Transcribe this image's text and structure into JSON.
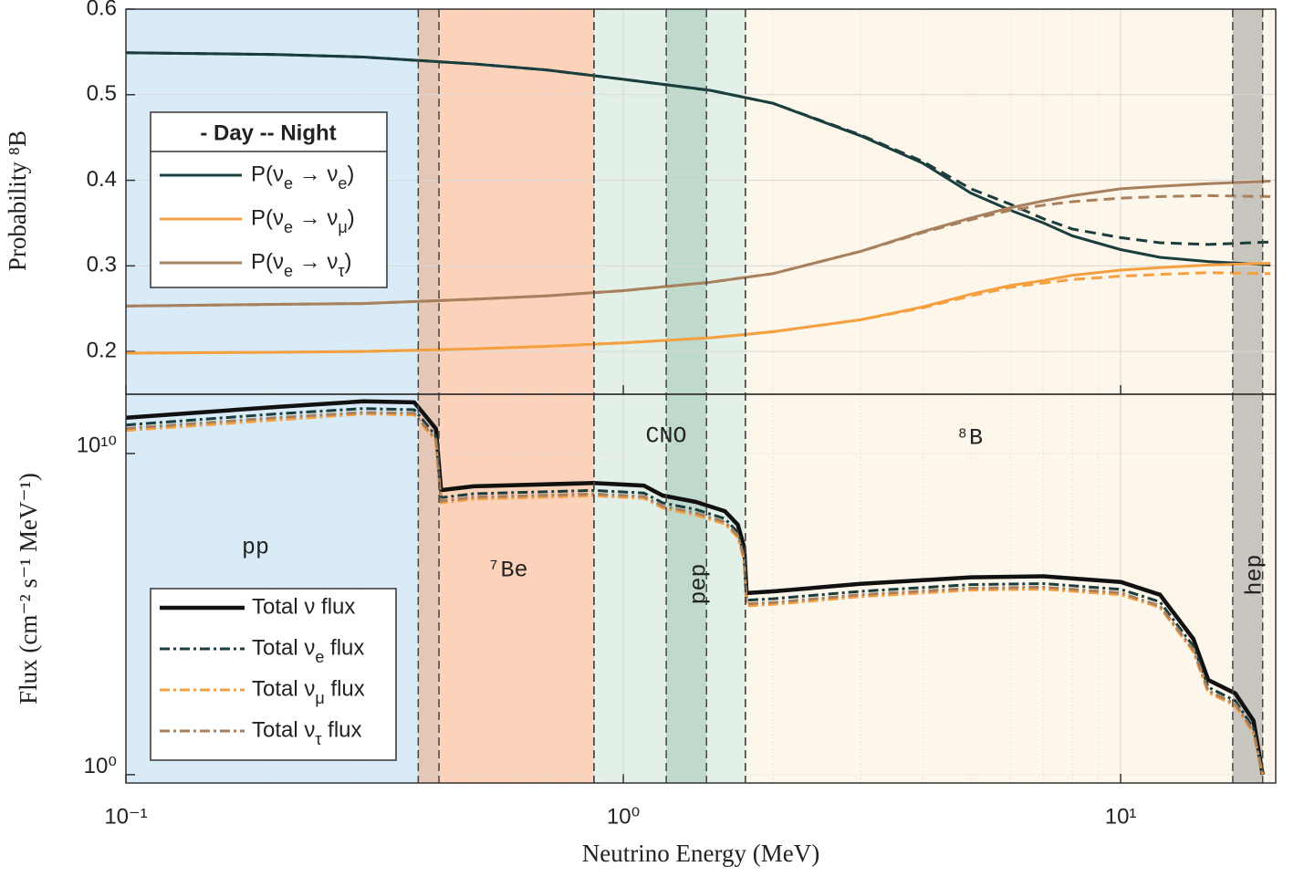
{
  "chart_data": [
    {
      "type": "line",
      "ylabel": "Probability ⁸B",
      "legend_title": "- Day -- Night",
      "ylim": [
        0.15,
        0.6
      ],
      "yticks": [
        0.2,
        0.3,
        0.4,
        0.5,
        0.6
      ],
      "grid": true,
      "x": [
        0.1,
        0.2,
        0.3,
        0.5,
        0.7,
        1,
        1.5,
        2,
        3,
        4,
        5,
        6,
        7,
        8,
        10,
        12,
        15,
        20
      ],
      "series": [
        {
          "name": "P(νe → νe)",
          "color": "#1a3d3d",
          "values": [
            0.549,
            0.547,
            0.544,
            0.536,
            0.529,
            0.518,
            0.505,
            0.49,
            0.452,
            0.42,
            0.385,
            0.365,
            0.35,
            0.335,
            0.319,
            0.31,
            0.305,
            0.301
          ],
          "night_values": [
            0.549,
            0.547,
            0.544,
            0.536,
            0.529,
            0.518,
            0.505,
            0.49,
            0.453,
            0.422,
            0.39,
            0.372,
            0.355,
            0.343,
            0.333,
            0.327,
            0.325,
            0.328
          ]
        },
        {
          "name": "P(νe → νμ)",
          "color": "#f5a040",
          "values": [
            0.198,
            0.199,
            0.2,
            0.203,
            0.206,
            0.21,
            0.216,
            0.223,
            0.237,
            0.252,
            0.267,
            0.277,
            0.283,
            0.289,
            0.295,
            0.298,
            0.301,
            0.303
          ],
          "night_values": [
            0.198,
            0.199,
            0.2,
            0.203,
            0.206,
            0.21,
            0.216,
            0.223,
            0.237,
            0.251,
            0.265,
            0.275,
            0.28,
            0.284,
            0.288,
            0.29,
            0.292,
            0.291
          ]
        },
        {
          "name": "P(νe → ντ)",
          "color": "#a8805e",
          "values": [
            0.253,
            0.255,
            0.256,
            0.261,
            0.265,
            0.271,
            0.281,
            0.291,
            0.317,
            0.34,
            0.356,
            0.368,
            0.376,
            0.382,
            0.39,
            0.393,
            0.396,
            0.399
          ],
          "night_values": [
            0.253,
            0.255,
            0.256,
            0.261,
            0.265,
            0.271,
            0.281,
            0.291,
            0.317,
            0.339,
            0.354,
            0.365,
            0.371,
            0.375,
            0.379,
            0.381,
            0.382,
            0.381
          ]
        }
      ]
    },
    {
      "type": "line",
      "yscale": "log",
      "xlabel": "Neutrino Energy (MeV)",
      "ylabel": "Flux (cm⁻² s⁻¹ MeV⁻¹)",
      "xlim": [
        0.1,
        20.5
      ],
      "xticks": [
        {
          "value": 0.1,
          "label": "10⁻¹"
        },
        {
          "value": 1,
          "label": "10⁰"
        },
        {
          "value": 10,
          "label": "10¹"
        }
      ],
      "ylim": [
        0.55,
        700000000000.0
      ],
      "yticks": [
        {
          "value": 1,
          "label": "10⁰"
        },
        {
          "value": 10000000000.0,
          "label": "10¹⁰"
        }
      ],
      "grid": true,
      "regions": [
        {
          "name": "pp",
          "range": [
            0.1,
            0.426
          ],
          "color": "rgba(140,195,228,0.33)"
        },
        {
          "name": "⁷Be",
          "range": [
            0.387,
            0.873
          ],
          "color": "rgba(248,150,90,0.42)"
        },
        {
          "name": "CNO",
          "range": [
            0.873,
            1.76
          ],
          "color": "rgba(160,205,180,0.3)"
        },
        {
          "name": "pep",
          "range": [
            1.22,
            1.47
          ],
          "color": "rgba(110,170,140,0.3)"
        },
        {
          "name": "⁸B",
          "range": [
            1.76,
            20.5
          ],
          "color": "rgba(250,225,190,0.3)"
        },
        {
          "name": "hep",
          "range": [
            16.8,
            19.3
          ],
          "color": "rgba(150,150,150,0.5)"
        }
      ],
      "x": [
        0.1,
        0.2,
        0.3,
        0.38,
        0.4,
        0.42,
        0.43,
        0.5,
        0.87,
        1.1,
        1.2,
        1.4,
        1.6,
        1.7,
        1.75,
        1.77,
        2,
        3,
        5,
        7,
        10,
        12,
        14,
        15,
        17,
        18.5,
        19.3
      ],
      "series": [
        {
          "name": "Total ν flux",
          "color": "#111111",
          "style": "solid",
          "values": [
            130000000000.0,
            280000000000.0,
            420000000000.0,
            390000000000.0,
            150000000000.0,
            59000000000.0,
            720000000.0,
            950000000.0,
            1200000000.0,
            1000000000.0,
            490000000.0,
            310000000.0,
            160000000.0,
            60000000.0,
            12000000.0,
            450000.0,
            510000.0,
            870000.0,
            1400000.0,
            1500000.0,
            1000000.0,
            400000.0,
            17000.0,
            890,
            340,
            48,
            1
          ]
        },
        {
          "name": "Total νe flux",
          "color": "#1a3d3d",
          "style": "dash-dot",
          "values": [
            77000000000.0,
            170000000000.0,
            250000000000.0,
            230000000000.0,
            89000000000.0,
            35000000000.0,
            420000000.0,
            560000000.0,
            710000000.0,
            590000000.0,
            290000000.0,
            180000000.0,
            94000000.0,
            35000000.0,
            7100000.0,
            270000.0,
            300000.0,
            510000.0,
            830000.0,
            890000.0,
            590000.0,
            240000.0,
            10000.0,
            530,
            200,
            28,
            1
          ]
        },
        {
          "name": "Total νμ flux",
          "color": "#f5a040",
          "style": "dash-dot",
          "values": [
            52000000000.0,
            110000000000.0,
            170000000000.0,
            160000000000.0,
            60000000000.0,
            24000000000.0,
            290000000.0,
            380000000.0,
            480000000.0,
            400000000.0,
            200000000.0,
            120000000.0,
            64000000.0,
            24000000.0,
            4800000.0,
            180000.0,
            200000.0,
            350000.0,
            560000.0,
            600000.0,
            400000.0,
            160000.0,
            6800.0,
            360,
            140,
            19,
            1
          ]
        },
        {
          "name": "Total ντ flux",
          "color": "#a8805e",
          "style": "dash-dot",
          "values": [
            60000000000.0,
            130000000000.0,
            190000000000.0,
            180000000000.0,
            69000000000.0,
            27000000000.0,
            330000000.0,
            440000000.0,
            550000000.0,
            460000000.0,
            230000000.0,
            140000000.0,
            74000000.0,
            28000000.0,
            5500000.0,
            210000.0,
            230000.0,
            400000.0,
            640000.0,
            690000.0,
            460000.0,
            180000.0,
            7800.0,
            410,
            160,
            22,
            1
          ]
        }
      ]
    }
  ]
}
